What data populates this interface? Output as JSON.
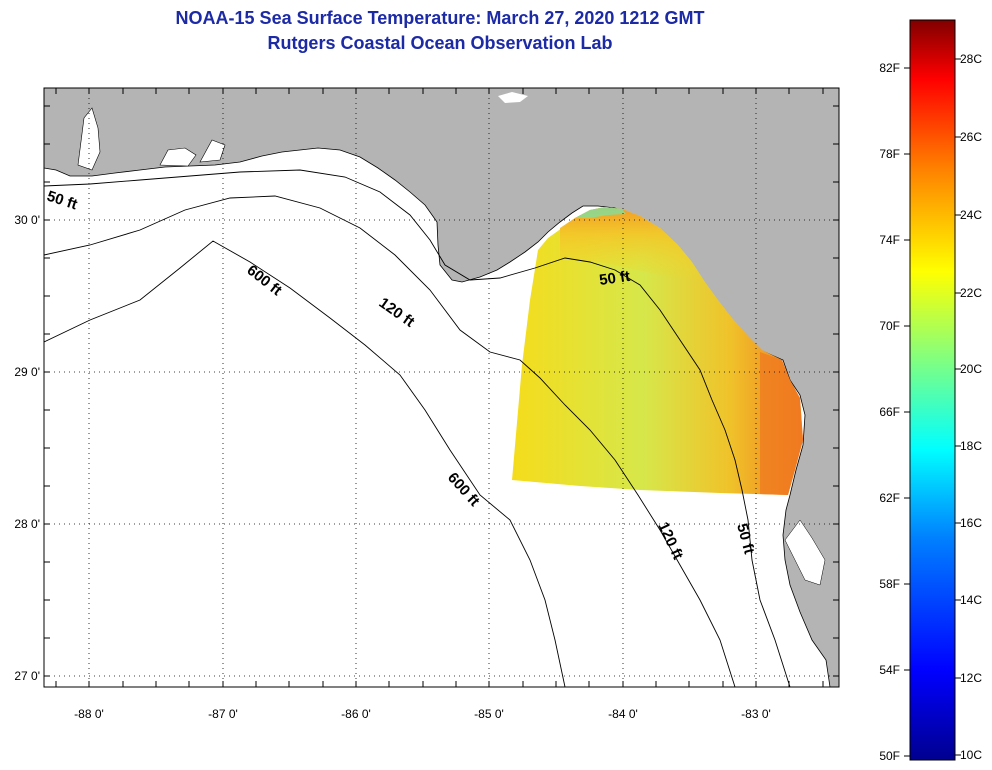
{
  "title": "NOAA-15 Sea Surface Temperature:  March 27, 2020 1212 GMT",
  "subtitle": "Rutgers Coastal Ocean Observation Lab",
  "map": {
    "lon_range": [
      -88.3,
      -82.5
    ],
    "lat_range": [
      26.97,
      30.88
    ],
    "x_ticks": [
      "-88 0'",
      "-87 0'",
      "-86 0'",
      "-85 0'",
      "-84 0'",
      "-83 0'"
    ],
    "y_ticks": [
      "30 0'",
      "29 0'",
      "28 0'",
      "27 0'"
    ],
    "contour_labels": [
      "50 ft",
      "600 ft",
      "120 ft",
      "50 ft",
      "600 ft",
      "120 ft",
      "50 ft"
    ]
  },
  "colorbar": {
    "f_labels": [
      "82F",
      "78F",
      "74F",
      "70F",
      "66F",
      "62F",
      "58F",
      "54F",
      "50F"
    ],
    "c_labels": [
      "28C",
      "26C",
      "24C",
      "22C",
      "20C",
      "18C",
      "16C",
      "14C",
      "12C",
      "10C"
    ],
    "range_c": [
      10,
      29
    ],
    "colors": [
      "#00008f",
      "#0000ff",
      "#0080ff",
      "#00ffff",
      "#80ff80",
      "#ffff00",
      "#ff8000",
      "#ff0000",
      "#800000"
    ]
  },
  "colors": {
    "land": "#b4b4b4",
    "ocean": "#ffffff",
    "title": "#1c2aa6",
    "sst_main": "#f2d226",
    "sst_warm": "#f07a20",
    "sst_cool": "#b8e060"
  }
}
